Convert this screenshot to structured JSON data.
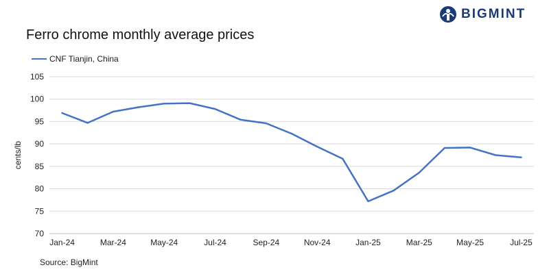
{
  "brand": {
    "name": "BIGMINT",
    "accent": "#1b3a78"
  },
  "title": "Ferro chrome monthly average prices",
  "source": "Source: BigMint",
  "chart_data": {
    "type": "line",
    "title": "Ferro chrome monthly average prices",
    "ylabel": "cents/lb",
    "xlabel": "",
    "ylim": [
      70,
      105
    ],
    "yticks": [
      70,
      75,
      80,
      85,
      90,
      95,
      100,
      105
    ],
    "grid": true,
    "legend_position": "top-left",
    "x": [
      "Jan-24",
      "Feb-24",
      "Mar-24",
      "Apr-24",
      "May-24",
      "Jun-24",
      "Jul-24",
      "Aug-24",
      "Sep-24",
      "Oct-24",
      "Nov-24",
      "Dec-24",
      "Jan-25",
      "Feb-25",
      "Mar-25",
      "Apr-25",
      "May-25",
      "Jun-25",
      "Jul-25"
    ],
    "xtick_labels": [
      "Jan-24",
      "Mar-24",
      "May-24",
      "Jul-24",
      "Sep-24",
      "Nov-24",
      "Jan-25",
      "Mar-25",
      "May-25",
      "Jul-25"
    ],
    "series": [
      {
        "name": "CNF Tianjin, China",
        "color": "#4472c4",
        "values": [
          96.9,
          94.7,
          97.2,
          98.2,
          99.0,
          99.1,
          97.8,
          95.4,
          94.6,
          92.3,
          89.4,
          86.7,
          77.2,
          79.6,
          83.6,
          89.1,
          89.2,
          87.5,
          87.0
        ]
      }
    ]
  }
}
